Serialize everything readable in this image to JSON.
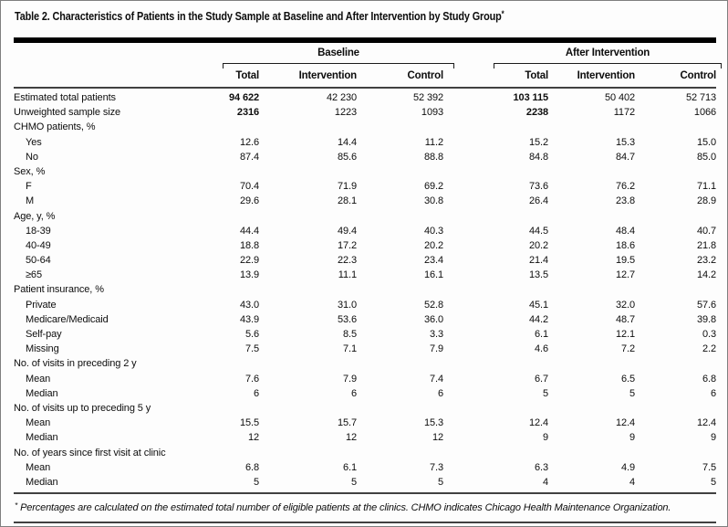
{
  "title": {
    "text": "Table 2. Characteristics of Patients in the Study Sample at Baseline and After Intervention by Study Group",
    "marker": "*"
  },
  "header": {
    "groups": [
      {
        "label": "Baseline"
      },
      {
        "label": "After Intervention"
      }
    ],
    "columns": [
      "Total",
      "Intervention",
      "Control",
      "Total",
      "Intervention",
      "Control"
    ]
  },
  "rows": [
    {
      "label": "Estimated total patients",
      "values": [
        "94 622",
        "42 230",
        "52 392",
        "103 115",
        "50 402",
        "52 713"
      ],
      "bold_cols": [
        0,
        3
      ]
    },
    {
      "label": "Unweighted sample size",
      "values": [
        "2316",
        "1223",
        "1093",
        "2238",
        "1172",
        "1066"
      ],
      "bold_cols": [
        0,
        3
      ]
    },
    {
      "label": "CHMO patients, %",
      "section": true
    },
    {
      "label": "Yes",
      "indent": true,
      "values": [
        "12.6",
        "14.4",
        "11.2",
        "15.2",
        "15.3",
        "15.0"
      ]
    },
    {
      "label": "No",
      "indent": true,
      "values": [
        "87.4",
        "85.6",
        "88.8",
        "84.8",
        "84.7",
        "85.0"
      ]
    },
    {
      "label": "Sex, %",
      "section": true
    },
    {
      "label": "F",
      "indent": true,
      "values": [
        "70.4",
        "71.9",
        "69.2",
        "73.6",
        "76.2",
        "71.1"
      ]
    },
    {
      "label": "M",
      "indent": true,
      "values": [
        "29.6",
        "28.1",
        "30.8",
        "26.4",
        "23.8",
        "28.9"
      ]
    },
    {
      "label": "Age, y, %",
      "section": true
    },
    {
      "label": "18-39",
      "indent": true,
      "values": [
        "44.4",
        "49.4",
        "40.3",
        "44.5",
        "48.4",
        "40.7"
      ]
    },
    {
      "label": "40-49",
      "indent": true,
      "values": [
        "18.8",
        "17.2",
        "20.2",
        "20.2",
        "18.6",
        "21.8"
      ]
    },
    {
      "label": "50-64",
      "indent": true,
      "values": [
        "22.9",
        "22.3",
        "23.4",
        "21.4",
        "19.5",
        "23.2"
      ]
    },
    {
      "label": "≥65",
      "indent": true,
      "values": [
        "13.9",
        "11.1",
        "16.1",
        "13.5",
        "12.7",
        "14.2"
      ]
    },
    {
      "label": "Patient insurance, %",
      "section": true
    },
    {
      "label": "Private",
      "indent": true,
      "values": [
        "43.0",
        "31.0",
        "52.8",
        "45.1",
        "32.0",
        "57.6"
      ]
    },
    {
      "label": "Medicare/Medicaid",
      "indent": true,
      "values": [
        "43.9",
        "53.6",
        "36.0",
        "44.2",
        "48.7",
        "39.8"
      ]
    },
    {
      "label": "Self-pay",
      "indent": true,
      "values": [
        "5.6",
        "8.5",
        "3.3",
        "6.1",
        "12.1",
        "0.3"
      ]
    },
    {
      "label": "Missing",
      "indent": true,
      "values": [
        "7.5",
        "7.1",
        "7.9",
        "4.6",
        "7.2",
        "2.2"
      ]
    },
    {
      "label": "No. of visits in preceding 2 y",
      "section": true
    },
    {
      "label": "Mean",
      "indent": true,
      "values": [
        "7.6",
        "7.9",
        "7.4",
        "6.7",
        "6.5",
        "6.8"
      ]
    },
    {
      "label": "Median",
      "indent": true,
      "values": [
        "6",
        "6",
        "6",
        "5",
        "5",
        "6"
      ]
    },
    {
      "label": "No. of visits up to preceding 5 y",
      "section": true
    },
    {
      "label": "Mean",
      "indent": true,
      "values": [
        "15.5",
        "15.7",
        "15.3",
        "12.4",
        "12.4",
        "12.4"
      ]
    },
    {
      "label": "Median",
      "indent": true,
      "values": [
        "12",
        "12",
        "12",
        "9",
        "9",
        "9"
      ]
    },
    {
      "label": "No. of years since first visit at clinic",
      "section": true
    },
    {
      "label": "Mean",
      "indent": true,
      "values": [
        "6.8",
        "6.1",
        "7.3",
        "6.3",
        "4.9",
        "7.5"
      ]
    },
    {
      "label": "Median",
      "indent": true,
      "values": [
        "5",
        "5",
        "5",
        "4",
        "4",
        "5"
      ]
    }
  ],
  "footnote": {
    "marker": "*",
    "text": "Percentages are calculated on the estimated total number of eligible patients at the clinics. CHMO indicates Chicago Health Maintenance Organization."
  },
  "colors": {
    "thick_rule": "#000000",
    "thin_rule": "#414141",
    "border": "#7f7f7f",
    "text": "#0d0d0d",
    "background": "#fdfdfd"
  }
}
